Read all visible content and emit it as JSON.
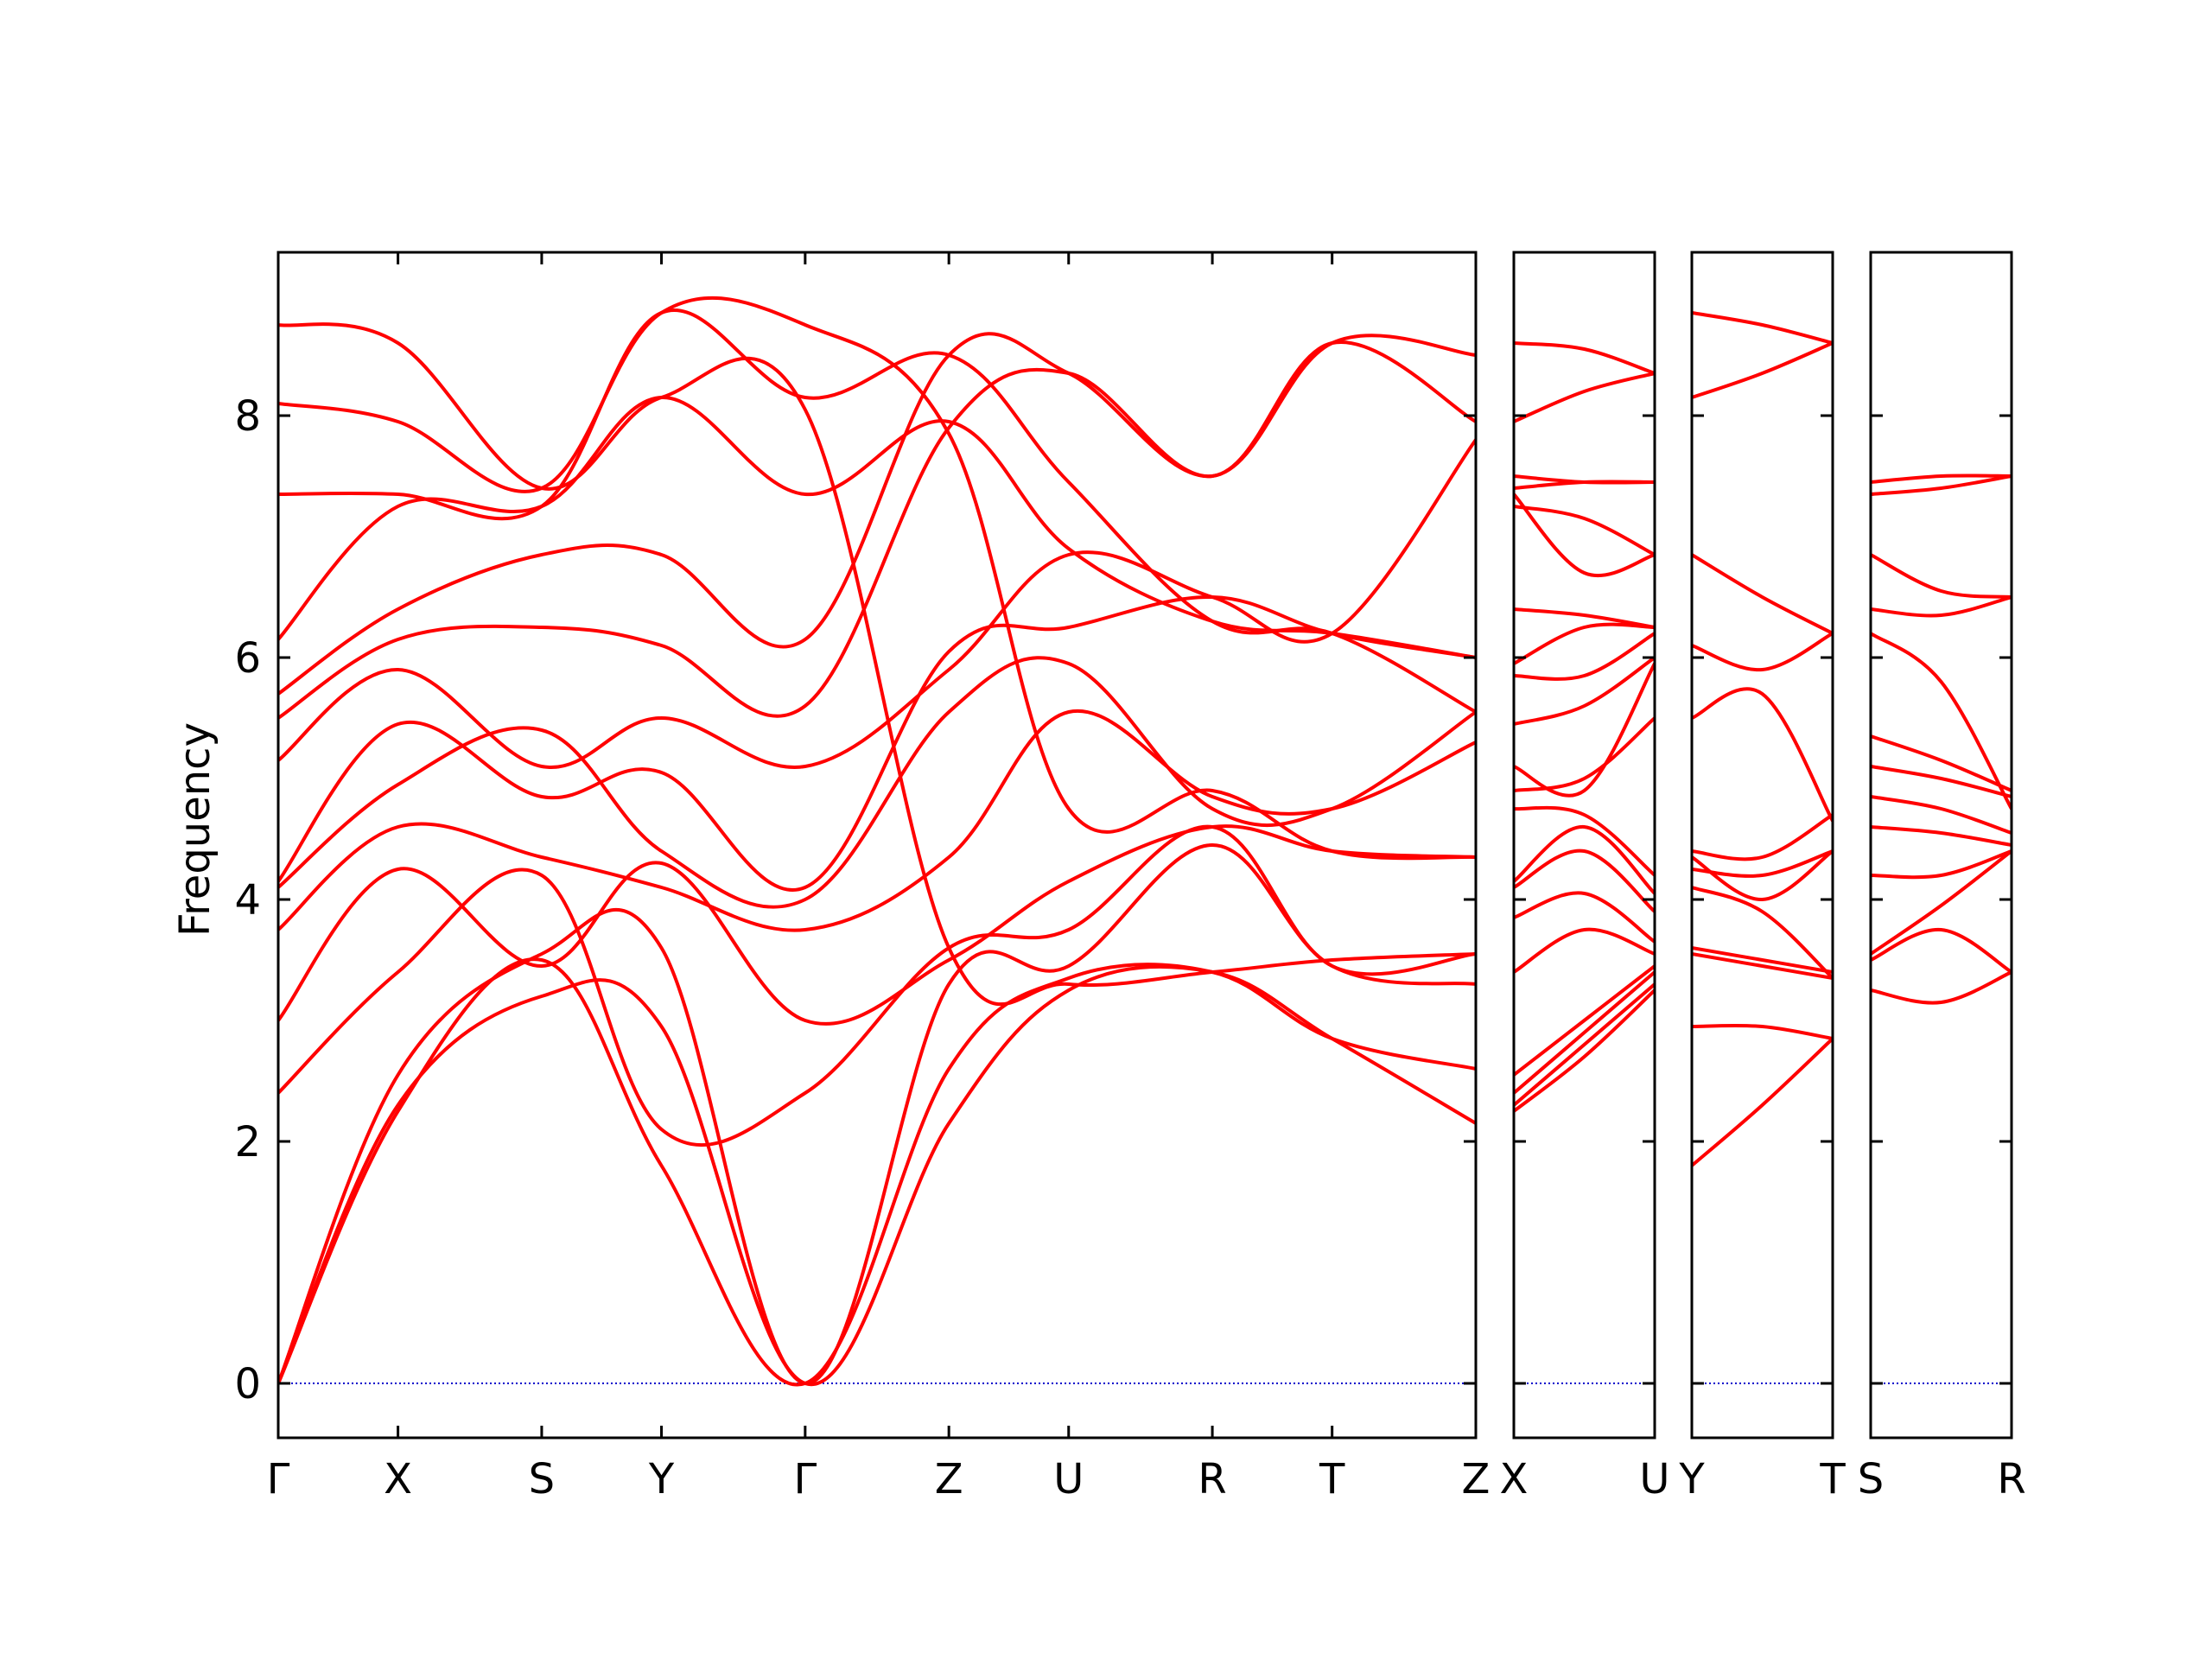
{
  "chart_data": {
    "type": "line",
    "ylabel": "Frequency",
    "ylim": [
      -0.45,
      9.35
    ],
    "y_ticks": [
      "0",
      "2",
      "4",
      "6",
      "8"
    ],
    "line_color": "#ff0000",
    "zero_line_color": "#0000cc",
    "panels": [
      {
        "labels": [
          "Γ",
          "X",
          "S",
          "Y",
          "Γ",
          "Z",
          "U",
          "R",
          "T",
          "Z"
        ],
        "label_pos": [
          0.0,
          0.5,
          1.1,
          1.6,
          2.2,
          2.8,
          3.3,
          3.9,
          4.4,
          5.0
        ],
        "bands": [
          {
            "x": [
              0,
              0.5,
              1.1,
              1.6,
              2.2,
              2.8,
              3.3,
              3.9,
              4.4,
              5.0
            ],
            "y": [
              0,
              2.3,
              3.2,
              2.95,
              0,
              2.15,
              3.25,
              3.4,
              2.85,
              2.15
            ]
          },
          {
            "x": [
              0,
              0.5,
              1.1,
              1.6,
              2.2,
              2.8,
              3.3,
              3.9,
              4.4,
              5.0
            ],
            "y": [
              0,
              2.25,
              3.5,
              1.8,
              0,
              2.6,
              3.35,
              3.4,
              2.85,
              2.6
            ]
          },
          {
            "x": [
              0,
              0.5,
              1.1,
              1.6,
              2.2,
              2.8,
              3.3,
              3.9,
              4.4,
              5.0
            ],
            "y": [
              0,
              2.55,
              3.55,
              3.6,
              0,
              3.3,
              3.45,
              4.45,
              3.45,
              3.3
            ]
          },
          {
            "x": [
              0,
              0.5,
              1.1,
              1.6,
              2.2,
              2.8,
              3.3,
              3.9,
              4.4,
              5.0
            ],
            "y": [
              2.4,
              3.4,
              4.2,
              2.1,
              2.4,
              3.6,
              3.75,
              4.6,
              3.45,
              3.55
            ]
          },
          {
            "x": [
              0,
              0.5,
              1.1,
              1.6,
              2.2,
              2.8,
              3.3,
              3.9,
              4.4,
              5.0
            ],
            "y": [
              3.0,
              4.25,
              3.45,
              4.3,
              3.0,
              3.5,
              4.15,
              4.6,
              4.4,
              4.35
            ]
          },
          {
            "x": [
              0,
              0.5,
              1.1,
              1.6,
              2.2,
              2.8,
              3.3,
              3.9,
              4.4,
              5.0
            ],
            "y": [
              3.75,
              4.6,
              4.35,
              4.1,
              3.75,
              4.35,
              5.55,
              4.85,
              4.75,
              5.3
            ]
          },
          {
            "x": [
              0,
              0.5,
              1.1,
              1.6,
              2.2,
              2.8,
              3.3,
              3.9,
              4.4,
              5.0
            ],
            "y": [
              4.1,
              4.95,
              5.4,
              4.4,
              4.0,
              5.55,
              5.95,
              4.75,
              4.75,
              5.55
            ]
          },
          {
            "x": [
              0,
              0.5,
              1.1,
              1.6,
              2.2,
              2.8,
              3.3,
              3.9,
              4.4,
              5.0
            ],
            "y": [
              4.15,
              5.45,
              4.85,
              5.05,
              4.1,
              6.05,
              6.25,
              6.5,
              6.2,
              6.0
            ]
          },
          {
            "x": [
              0,
              0.5,
              1.1,
              1.6,
              2.2,
              2.8,
              3.3,
              3.9,
              4.4,
              5.0
            ],
            "y": [
              5.15,
              5.9,
              5.1,
              5.5,
              5.1,
              5.9,
              6.85,
              6.5,
              6.2,
              7.8
            ]
          },
          {
            "x": [
              0,
              0.5,
              1.1,
              1.6,
              2.2,
              2.8,
              3.3,
              3.9,
              4.4,
              5.0
            ],
            "y": [
              5.5,
              6.15,
              6.25,
              6.1,
              5.6,
              7.9,
              8.35,
              7.5,
              8.6,
              7.95
            ]
          },
          {
            "x": [
              0,
              0.5,
              1.1,
              1.6,
              2.2,
              2.8,
              3.3,
              3.9,
              4.4,
              5.0
            ],
            "y": [
              5.7,
              6.4,
              6.85,
              6.85,
              6.15,
              8.5,
              8.35,
              7.5,
              8.6,
              8.5
            ]
          },
          {
            "x": [
              0,
              0.5,
              1.1,
              1.6,
              2.2,
              2.8,
              3.3,
              3.9,
              4.4,
              5.0
            ],
            "y": [
              6.15,
              7.25,
              7.25,
              8.15,
              7.35,
              7.95,
              6.9,
              6.3,
              6.2,
              6.0
            ]
          },
          {
            "x": [
              0,
              0.5,
              1.1,
              1.6,
              2.2,
              2.8,
              3.3,
              3.9,
              4.4,
              5.0
            ],
            "y": [
              7.35,
              7.35,
              7.25,
              8.85,
              8.15,
              8.5,
              7.45,
              6.3,
              6.2,
              5.55
            ]
          },
          {
            "x": [
              0,
              0.5,
              1.1,
              1.6,
              2.2,
              2.8,
              3.3,
              3.9,
              4.4,
              5.0
            ],
            "y": [
              8.1,
              7.95,
              7.4,
              8.85,
              8.75,
              7.85,
              4.75,
              4.9,
              4.4,
              4.35
            ]
          },
          {
            "x": [
              0,
              0.5,
              1.1,
              1.6,
              2.2,
              2.8,
              3.3,
              3.9,
              4.4,
              5.0
            ],
            "y": [
              8.75,
              8.6,
              7.4,
              8.15,
              8.05,
              3.6,
              3.3,
              3.4,
              3.5,
              3.55
            ]
          }
        ]
      },
      {
        "labels": [
          "X",
          "U"
        ],
        "label_pos": [
          0.0,
          1.0
        ],
        "bands": [
          {
            "x": [
              0,
              0.5,
              1
            ],
            "y": [
              2.25,
              2.7,
              3.25
            ]
          },
          {
            "x": [
              0,
              0.5,
              1
            ],
            "y": [
              2.3,
              2.8,
              3.3
            ]
          },
          {
            "x": [
              0,
              0.5,
              1
            ],
            "y": [
              2.4,
              2.9,
              3.4
            ]
          },
          {
            "x": [
              0,
              0.5,
              1
            ],
            "y": [
              2.55,
              3.0,
              3.45
            ]
          },
          {
            "x": [
              0,
              0.5,
              1
            ],
            "y": [
              3.4,
              3.75,
              3.55
            ]
          },
          {
            "x": [
              0,
              0.5,
              1
            ],
            "y": [
              3.85,
              4.05,
              3.65
            ]
          },
          {
            "x": [
              0,
              0.5,
              1
            ],
            "y": [
              4.1,
              4.4,
              3.9
            ]
          },
          {
            "x": [
              0,
              0.5,
              1
            ],
            "y": [
              4.15,
              4.6,
              4.05
            ]
          },
          {
            "x": [
              0,
              0.5,
              1
            ],
            "y": [
              4.75,
              4.7,
              4.2
            ]
          },
          {
            "x": [
              0,
              0.5,
              1
            ],
            "y": [
              4.9,
              5.0,
              5.5
            ]
          },
          {
            "x": [
              0,
              0.5,
              1
            ],
            "y": [
              5.1,
              4.9,
              5.95
            ]
          },
          {
            "x": [
              0,
              0.5,
              1
            ],
            "y": [
              5.45,
              5.6,
              6.0
            ]
          },
          {
            "x": [
              0,
              0.5,
              1
            ],
            "y": [
              5.85,
              5.85,
              6.2
            ]
          },
          {
            "x": [
              0,
              0.5,
              1
            ],
            "y": [
              5.95,
              6.25,
              6.25
            ]
          },
          {
            "x": [
              0,
              0.5,
              1
            ],
            "y": [
              6.4,
              6.35,
              6.25
            ]
          },
          {
            "x": [
              0,
              0.5,
              1
            ],
            "y": [
              7.25,
              7.15,
              6.85
            ]
          },
          {
            "x": [
              0,
              0.5,
              1
            ],
            "y": [
              7.35,
              6.7,
              6.85
            ]
          },
          {
            "x": [
              0,
              0.5,
              1
            ],
            "y": [
              7.4,
              7.45,
              7.45
            ]
          },
          {
            "x": [
              0,
              0.5,
              1
            ],
            "y": [
              7.5,
              7.45,
              7.45
            ]
          },
          {
            "x": [
              0,
              0.5,
              1
            ],
            "y": [
              7.95,
              8.2,
              8.35
            ]
          },
          {
            "x": [
              0,
              0.5,
              1
            ],
            "y": [
              8.6,
              8.55,
              8.35
            ]
          }
        ]
      },
      {
        "labels": [
          "Y",
          "T"
        ],
        "label_pos": [
          0.0,
          1.0
        ],
        "bands": [
          {
            "x": [
              0,
              0.5,
              1
            ],
            "y": [
              1.8,
              2.3,
              2.85
            ]
          },
          {
            "x": [
              0,
              0.5,
              1
            ],
            "y": [
              2.95,
              2.95,
              2.85
            ]
          },
          {
            "x": [
              0,
              0.5,
              1
            ],
            "y": [
              3.55,
              3.45,
              3.35
            ]
          },
          {
            "x": [
              0,
              0.5,
              1
            ],
            "y": [
              3.6,
              3.5,
              3.4
            ]
          },
          {
            "x": [
              0,
              0.5,
              1
            ],
            "y": [
              4.1,
              3.9,
              3.35
            ]
          },
          {
            "x": [
              0,
              0.5,
              1
            ],
            "y": [
              4.25,
              4.2,
              4.4
            ]
          },
          {
            "x": [
              0,
              0.5,
              1
            ],
            "y": [
              4.35,
              4.0,
              4.4
            ]
          },
          {
            "x": [
              0,
              0.5,
              1
            ],
            "y": [
              4.4,
              4.35,
              4.7
            ]
          },
          {
            "x": [
              0,
              0.5,
              1
            ],
            "y": [
              5.5,
              5.7,
              4.65
            ]
          },
          {
            "x": [
              0,
              0.5,
              1
            ],
            "y": [
              6.1,
              5.9,
              6.2
            ]
          },
          {
            "x": [
              0,
              0.5,
              1
            ],
            "y": [
              6.85,
              6.5,
              6.2
            ]
          },
          {
            "x": [
              0,
              0.5,
              1
            ],
            "y": [
              8.15,
              8.35,
              8.6
            ]
          },
          {
            "x": [
              0,
              0.5,
              1
            ],
            "y": [
              8.85,
              8.75,
              8.6
            ]
          }
        ]
      },
      {
        "labels": [
          "S",
          "R"
        ],
        "label_pos": [
          0.0,
          1.0
        ],
        "bands": [
          {
            "x": [
              0,
              0.5,
              1
            ],
            "y": [
              3.25,
              3.15,
              3.4
            ]
          },
          {
            "x": [
              0,
              0.5,
              1
            ],
            "y": [
              3.5,
              3.75,
              3.4
            ]
          },
          {
            "x": [
              0,
              0.5,
              1
            ],
            "y": [
              3.55,
              3.95,
              4.4
            ]
          },
          {
            "x": [
              0,
              0.5,
              1
            ],
            "y": [
              4.2,
              4.2,
              4.4
            ]
          },
          {
            "x": [
              0,
              0.5,
              1
            ],
            "y": [
              4.6,
              4.55,
              4.45
            ]
          },
          {
            "x": [
              0,
              0.5,
              1
            ],
            "y": [
              4.85,
              4.75,
              4.55
            ]
          },
          {
            "x": [
              0,
              0.5,
              1
            ],
            "y": [
              5.1,
              5.0,
              4.85
            ]
          },
          {
            "x": [
              0,
              0.5,
              1
            ],
            "y": [
              5.35,
              5.15,
              4.9
            ]
          },
          {
            "x": [
              0,
              0.5,
              1
            ],
            "y": [
              6.2,
              5.8,
              4.75
            ]
          },
          {
            "x": [
              0,
              0.5,
              1
            ],
            "y": [
              6.4,
              6.35,
              6.5
            ]
          },
          {
            "x": [
              0,
              0.5,
              1
            ],
            "y": [
              6.85,
              6.55,
              6.5
            ]
          },
          {
            "x": [
              0,
              0.5,
              1
            ],
            "y": [
              7.35,
              7.4,
              7.5
            ]
          },
          {
            "x": [
              0,
              0.5,
              1
            ],
            "y": [
              7.45,
              7.5,
              7.5
            ]
          }
        ]
      }
    ]
  }
}
